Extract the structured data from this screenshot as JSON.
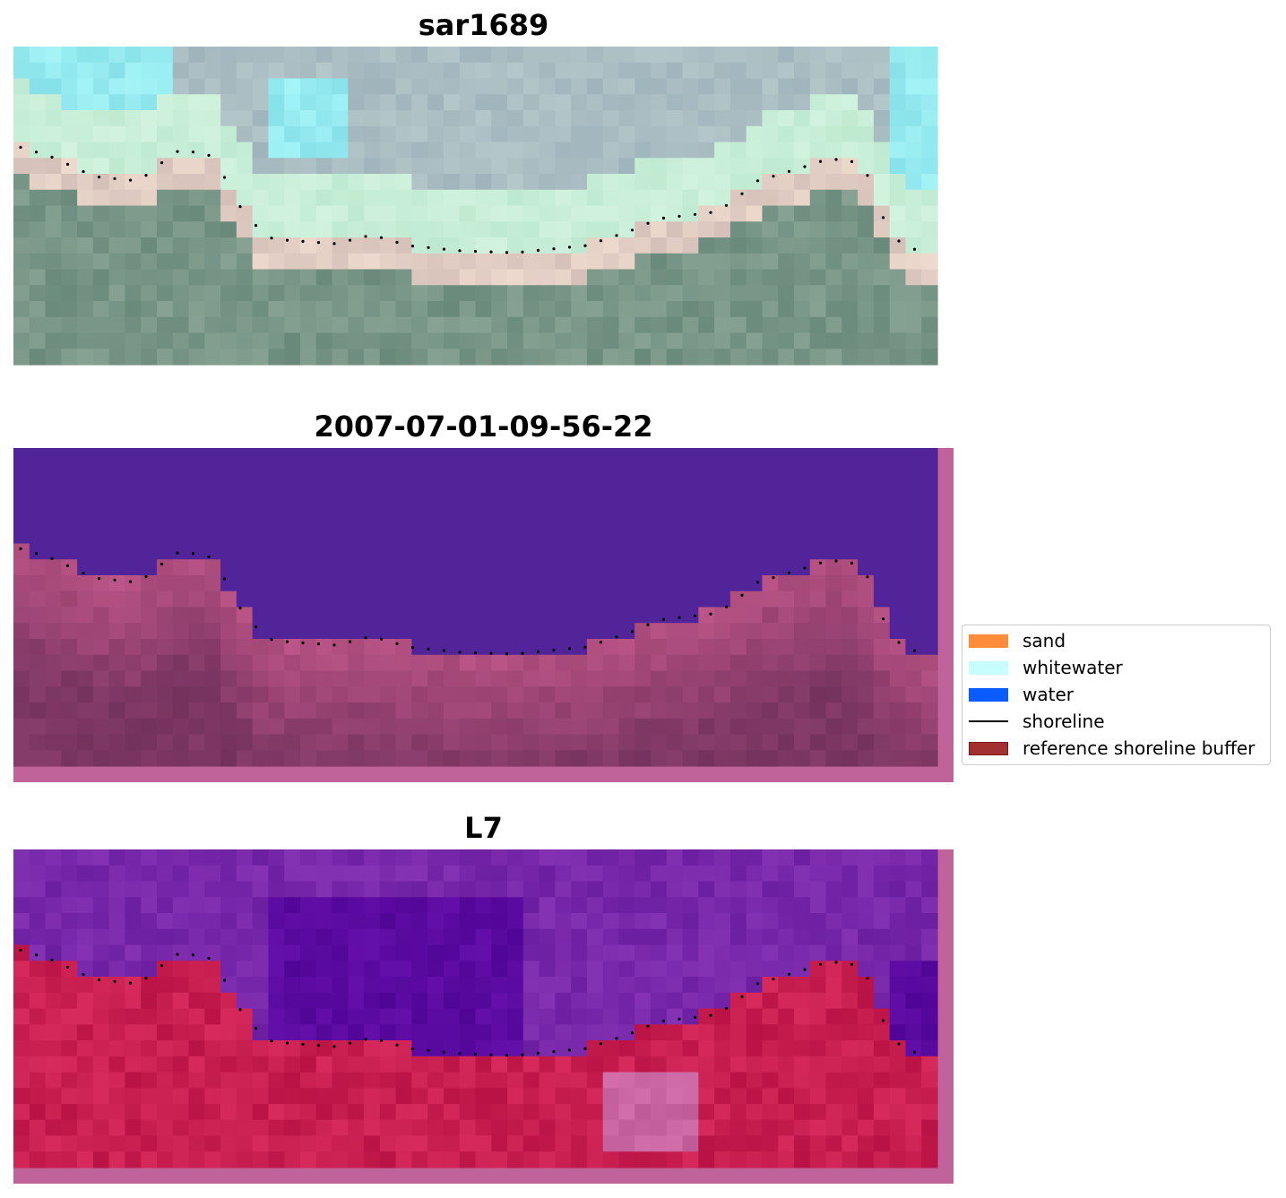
{
  "panels": [
    {
      "title": "sar1689",
      "style": "rgb"
    },
    {
      "title": "2007-07-01-09-56-22",
      "style": "classified"
    },
    {
      "title": "L7",
      "style": "false-color"
    }
  ],
  "legend": {
    "items": [
      {
        "label": "sand",
        "kind": "patch",
        "color": "#ff8c3a"
      },
      {
        "label": "whitewater",
        "kind": "patch",
        "color": "#c8fdfd"
      },
      {
        "label": "water",
        "kind": "patch",
        "color": "#0a5cff"
      },
      {
        "label": "shoreline",
        "kind": "line",
        "color": "#000000"
      },
      {
        "label": "reference shoreline buffer",
        "kind": "patch",
        "color": "#a33030",
        "edge": "#7a1a1a"
      }
    ]
  },
  "colors": {
    "water_class": "#52249a",
    "land_class": "#b04a80",
    "buffer_frame": "#c0639a",
    "shoreline_dots": "#000000"
  }
}
